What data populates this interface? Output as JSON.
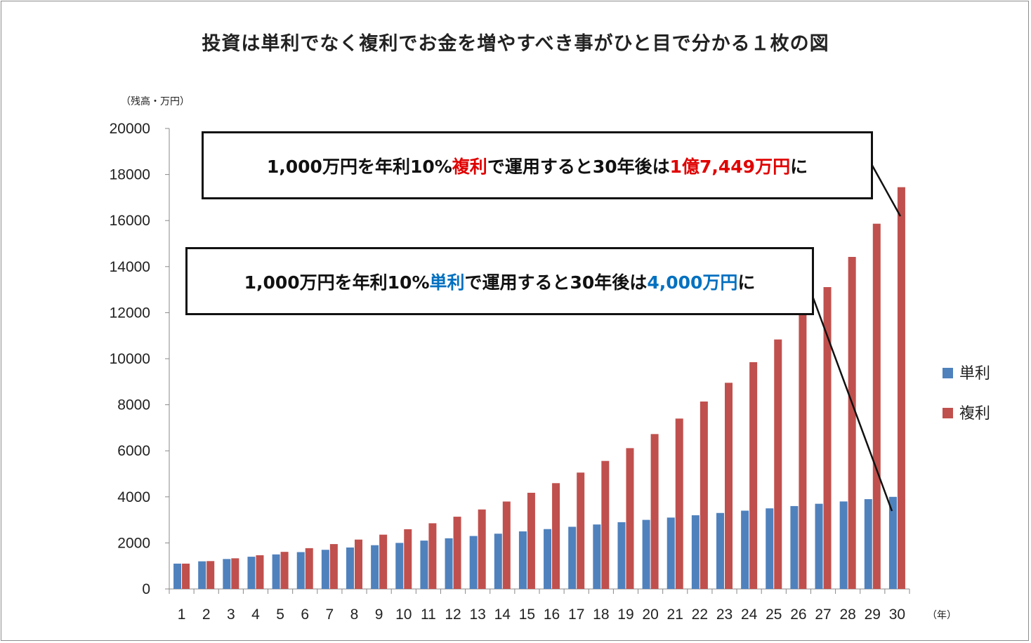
{
  "chart_data": {
    "type": "bar",
    "title": "投資は単利でなく複利でお金を増やすべき事がひと目で分かる１枚の図",
    "ylabel": "（残高・万円）",
    "xlabel": "（年）",
    "ylim": [
      0,
      20000
    ],
    "yticks": [
      0,
      2000,
      4000,
      6000,
      8000,
      10000,
      12000,
      14000,
      16000,
      18000,
      20000
    ],
    "categories": [
      "1",
      "2",
      "3",
      "4",
      "5",
      "6",
      "7",
      "8",
      "9",
      "10",
      "11",
      "12",
      "13",
      "14",
      "15",
      "16",
      "17",
      "18",
      "19",
      "20",
      "21",
      "22",
      "23",
      "24",
      "25",
      "26",
      "27",
      "28",
      "29",
      "30"
    ],
    "series": [
      {
        "name": "単利",
        "color": "#4f81bd",
        "values": [
          1100,
          1200,
          1300,
          1400,
          1500,
          1600,
          1700,
          1800,
          1900,
          2000,
          2100,
          2200,
          2300,
          2400,
          2500,
          2600,
          2700,
          2800,
          2900,
          3000,
          3100,
          3200,
          3300,
          3400,
          3500,
          3600,
          3700,
          3800,
          3900,
          4000
        ]
      },
      {
        "name": "複利",
        "color": "#c0504d",
        "values": [
          1100,
          1210,
          1331,
          1464,
          1611,
          1772,
          1949,
          2144,
          2358,
          2594,
          2853,
          3138,
          3452,
          3797,
          4177,
          4595,
          5054,
          5560,
          6116,
          6727,
          7400,
          8140,
          8954,
          9850,
          10835,
          11918,
          13110,
          14421,
          15863,
          17449
        ]
      }
    ],
    "legend_position": "right",
    "grid": false,
    "annotations": [
      {
        "parts": [
          {
            "text": "1,000万円を年利10%",
            "style": "plain"
          },
          {
            "text": "複利",
            "style": "red"
          },
          {
            "text": "で運用すると30年後は",
            "style": "plain"
          },
          {
            "text": "1億7,449万円",
            "style": "red"
          },
          {
            "text": "に",
            "style": "plain"
          }
        ]
      },
      {
        "parts": [
          {
            "text": "1,000万円を年利10%",
            "style": "plain"
          },
          {
            "text": "単利",
            "style": "blue"
          },
          {
            "text": "で運用すると30年後は",
            "style": "plain"
          },
          {
            "text": "4,000万円",
            "style": "blue"
          },
          {
            "text": "に",
            "style": "plain"
          }
        ]
      }
    ]
  }
}
